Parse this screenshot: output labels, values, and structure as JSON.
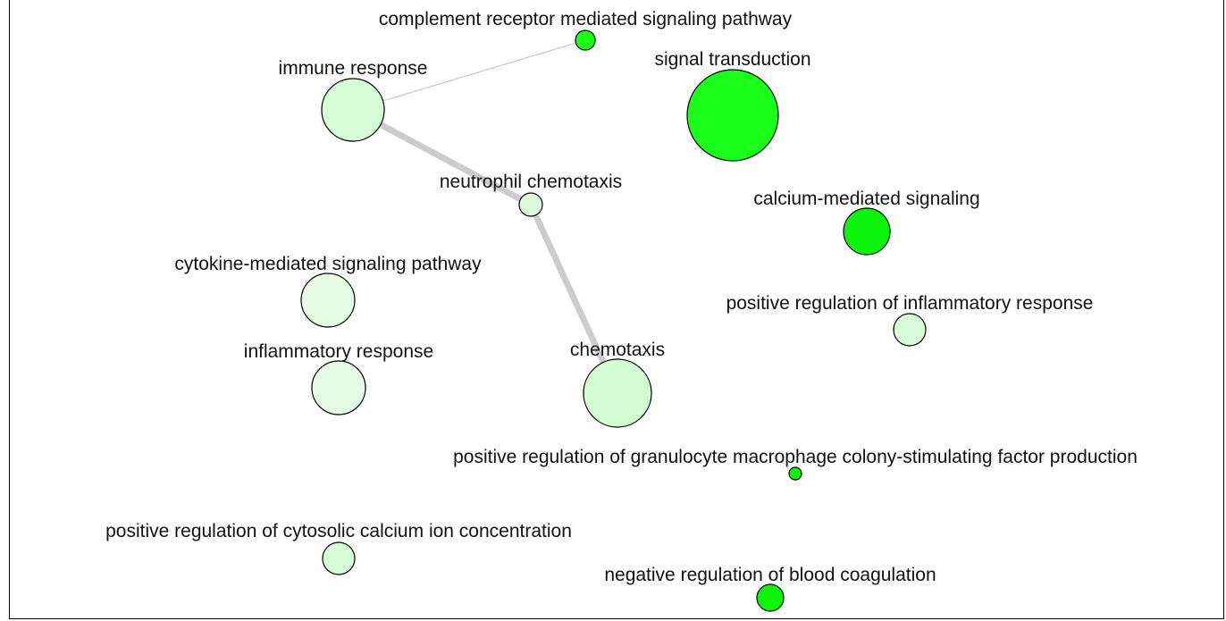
{
  "network": {
    "nodes": [
      {
        "id": "complement",
        "label": "complement receptor mediated signaling pathway",
        "color": "#1aff1a"
      },
      {
        "id": "immune",
        "label": "immune response",
        "color": "#d6fdd6"
      },
      {
        "id": "signal",
        "label": "signal transduction",
        "color": "#1aff1a"
      },
      {
        "id": "neutrophil",
        "label": "neutrophil chemotaxis",
        "color": "#dcfddc"
      },
      {
        "id": "calcium",
        "label": "calcium-mediated signaling",
        "color": "#0df50d"
      },
      {
        "id": "cytokine",
        "label": "cytokine-mediated signaling pathway",
        "color": "#e4fde4"
      },
      {
        "id": "posinflam",
        "label": "positive regulation of inflammatory response",
        "color": "#d9fdd9"
      },
      {
        "id": "inflam",
        "label": "inflammatory response",
        "color": "#e4fde4"
      },
      {
        "id": "chemotaxis",
        "label": "chemotaxis",
        "color": "#d2fcd2"
      },
      {
        "id": "gmcsf",
        "label": "positive regulation of granulocyte macrophage colony-stimulating factor production",
        "color": "#0df50d"
      },
      {
        "id": "cytosolic",
        "label": "positive regulation of cytosolic calcium ion concentration",
        "color": "#d6fdd6"
      },
      {
        "id": "coag",
        "label": "negative regulation of blood coagulation",
        "color": "#0df50d"
      }
    ],
    "edges": [
      {
        "source": "immune",
        "target": "complement",
        "weight": "thin"
      },
      {
        "source": "immune",
        "target": "neutrophil",
        "weight": "thick"
      },
      {
        "source": "neutrophil",
        "target": "chemotaxis",
        "weight": "thick"
      }
    ]
  }
}
